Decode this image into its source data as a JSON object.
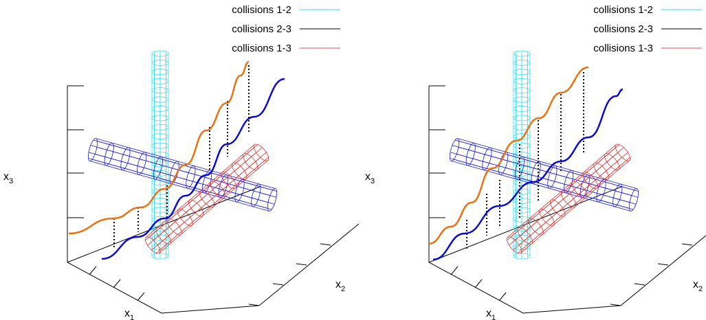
{
  "chart_data": [
    {
      "type": "line",
      "title": "",
      "axes": {
        "x": "x",
        "y": "x",
        "z": "x",
        "x_sub": "1",
        "y_sub": "2",
        "z_sub": "3"
      },
      "legend": {
        "placement": "top-right",
        "entries": [
          {
            "label": "collisions 1-2",
            "color": "#33e0ee"
          },
          {
            "label": "collisions 2-3",
            "color": "#000000"
          },
          {
            "label": "collisions 1-3",
            "color": "#e05050"
          }
        ]
      },
      "series": [
        {
          "name": "",
          "color": "#ee7011",
          "role": "orange trajectory"
        },
        {
          "name": "",
          "color": "#0a0ad8",
          "role": "blue trajectory"
        }
      ],
      "grid": false
    },
    {
      "type": "line",
      "title": "",
      "axes": {
        "x": "x",
        "y": "x",
        "z": "x",
        "x_sub": "1",
        "y_sub": "2",
        "z_sub": "3"
      },
      "legend": {
        "placement": "top-right",
        "entries": [
          {
            "label": "collisions 1-2",
            "color": "#33e0ee"
          },
          {
            "label": "collisions 2-3",
            "color": "#000000"
          },
          {
            "label": "collisions 1-3",
            "color": "#e05050"
          }
        ]
      },
      "series": [
        {
          "name": "",
          "color": "#ee7011",
          "role": "orange trajectory"
        },
        {
          "name": "",
          "color": "#0a0ad8",
          "role": "blue trajectory"
        }
      ],
      "grid": false
    }
  ]
}
